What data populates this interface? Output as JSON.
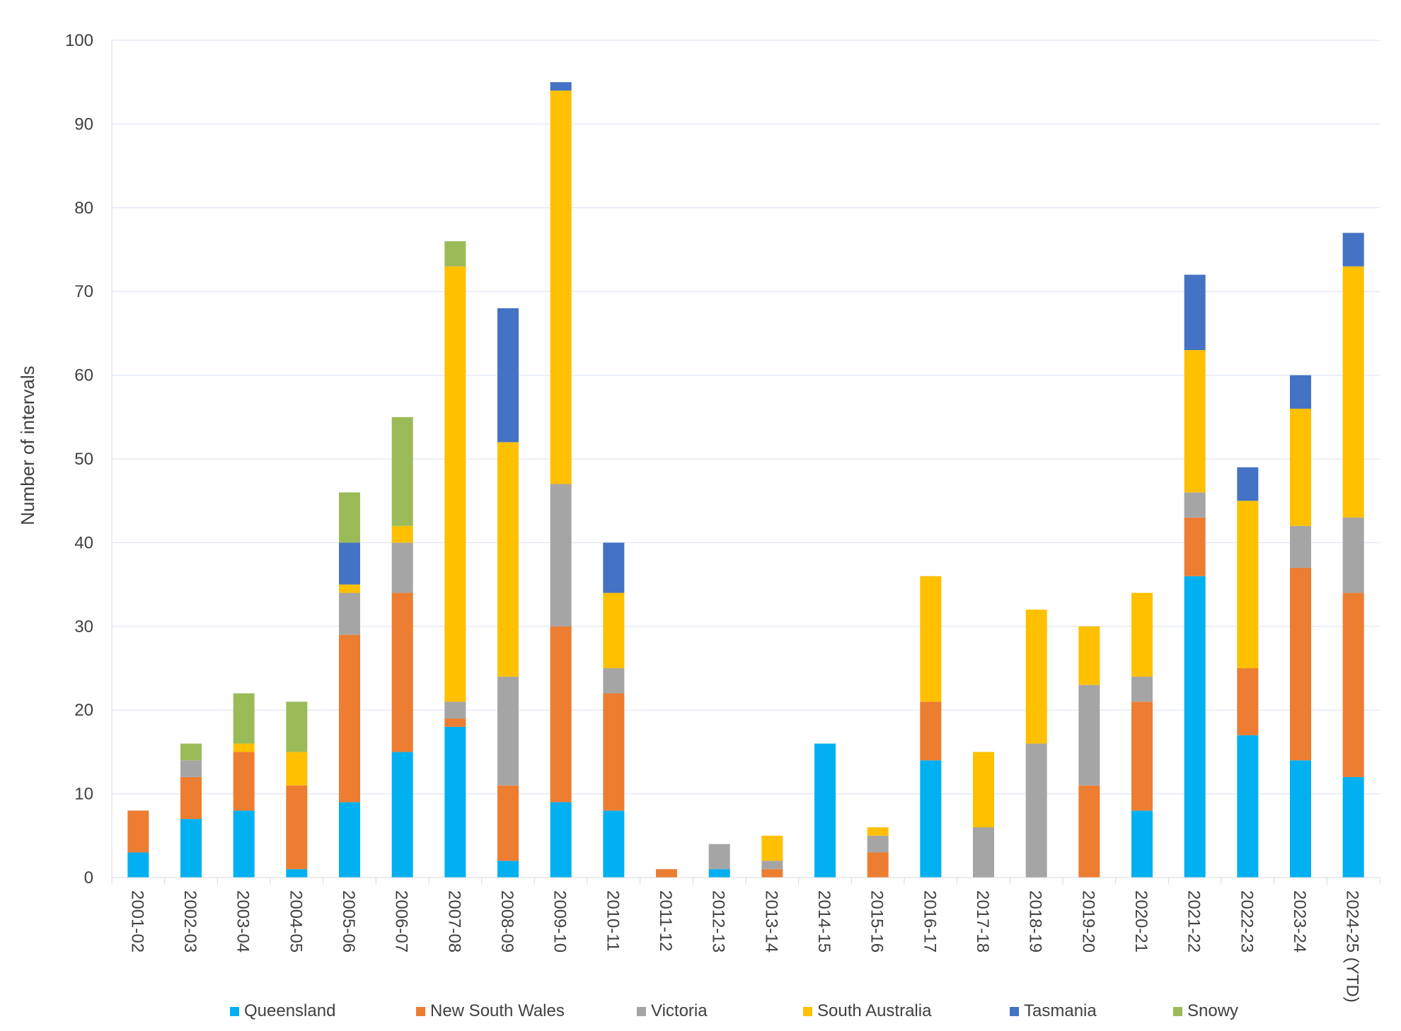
{
  "chart_data": {
    "type": "bar",
    "stacked": true,
    "title": "",
    "xlabel": "",
    "ylabel": "Number of intervals",
    "ylim": [
      0,
      100
    ],
    "yticks": [
      "0",
      "10",
      "20",
      "30",
      "40",
      "50",
      "60",
      "70",
      "80",
      "90",
      "100"
    ],
    "grid": true,
    "legend_position": "bottom",
    "categories": [
      "2001-02",
      "2002-03",
      "2003-04",
      "2004-05",
      "2005-06",
      "2006-07",
      "2007-08",
      "2008-09",
      "2009-10",
      "2010-11",
      "2011-12",
      "2012-13",
      "2013-14",
      "2014-15",
      "2015-16",
      "2016-17",
      "2017-18",
      "2018-19",
      "2019-20",
      "2020-21",
      "2021-22",
      "2022-23",
      "2023-24",
      "2024-25 (YTD)"
    ],
    "series": [
      {
        "name": "Queensland",
        "color": "#00b0f0",
        "values": [
          3,
          7,
          8,
          1,
          9,
          15,
          18,
          2,
          9,
          8,
          0,
          1,
          0,
          16,
          0,
          14,
          0,
          0,
          0,
          8,
          36,
          17,
          14,
          12
        ]
      },
      {
        "name": "New South Wales",
        "color": "#ed7d31",
        "values": [
          5,
          5,
          7,
          10,
          20,
          19,
          1,
          9,
          21,
          14,
          1,
          0,
          1,
          0,
          3,
          7,
          0,
          0,
          11,
          13,
          7,
          8,
          23,
          22
        ]
      },
      {
        "name": "Victoria",
        "color": "#a5a5a5",
        "values": [
          0,
          2,
          0,
          0,
          5,
          6,
          2,
          13,
          17,
          3,
          0,
          3,
          1,
          0,
          2,
          0,
          6,
          16,
          12,
          3,
          3,
          0,
          5,
          9
        ]
      },
      {
        "name": "South Australia",
        "color": "#ffc000",
        "values": [
          0,
          0,
          1,
          4,
          1,
          2,
          52,
          28,
          47,
          9,
          0,
          0,
          3,
          0,
          1,
          15,
          9,
          16,
          7,
          10,
          17,
          20,
          14,
          30
        ]
      },
      {
        "name": "Tasmania",
        "color": "#4472c4",
        "values": [
          0,
          0,
          0,
          0,
          5,
          0,
          0,
          16,
          1,
          6,
          0,
          0,
          0,
          0,
          0,
          0,
          0,
          0,
          0,
          0,
          9,
          4,
          4,
          4
        ]
      },
      {
        "name": "Snowy",
        "color": "#9bbb59",
        "values": [
          0,
          2,
          6,
          6,
          6,
          13,
          3,
          0,
          0,
          0,
          0,
          0,
          0,
          0,
          0,
          0,
          0,
          0,
          0,
          0,
          0,
          0,
          0,
          0
        ]
      }
    ]
  }
}
